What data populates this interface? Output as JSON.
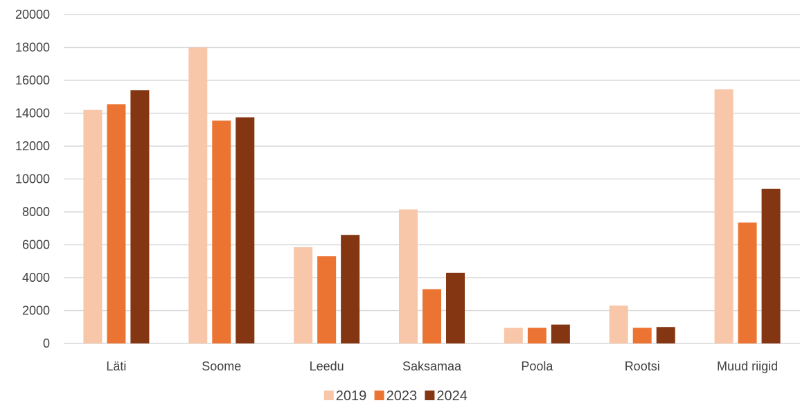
{
  "chart_data": {
    "type": "bar",
    "title": "",
    "xlabel": "",
    "ylabel": "",
    "categories": [
      "Läti",
      "Soome",
      "Leedu",
      "Saksamaa",
      "Poola",
      "Rootsi",
      "Muud riigid"
    ],
    "series": [
      {
        "name": "2019",
        "color": "#F8C7AA",
        "values": [
          14200,
          18000,
          5850,
          8150,
          950,
          2300,
          15450
        ]
      },
      {
        "name": "2023",
        "color": "#EB7432",
        "values": [
          14550,
          13550,
          5300,
          3300,
          950,
          950,
          7350
        ]
      },
      {
        "name": "2024",
        "color": "#843511",
        "values": [
          15400,
          13750,
          6600,
          4300,
          1150,
          1000,
          9400
        ]
      }
    ],
    "ylim": [
      0,
      20000
    ],
    "yticks": [
      0,
      2000,
      4000,
      6000,
      8000,
      10000,
      12000,
      14000,
      16000,
      18000,
      20000
    ],
    "grid": true,
    "legend_position": "bottom",
    "gridline_color": "#D9D9D9"
  }
}
